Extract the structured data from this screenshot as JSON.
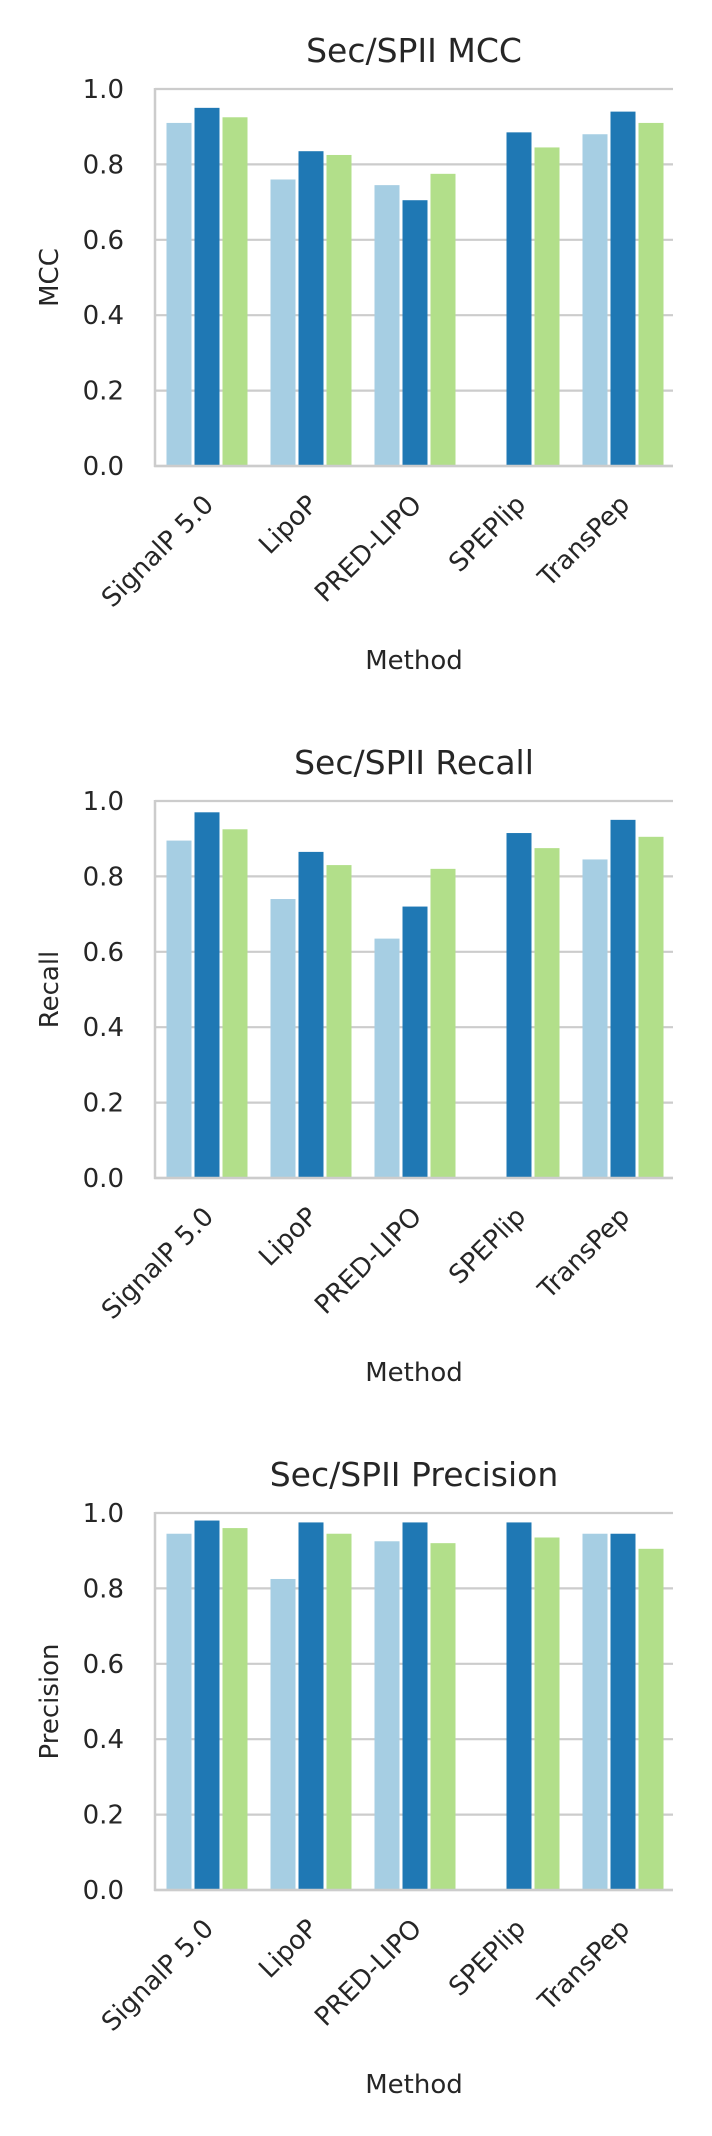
{
  "colors": {
    "series": [
      "#a6cee3",
      "#1f78b4",
      "#b2df8a"
    ],
    "grid": "#cccccc",
    "spine": "#cccccc",
    "text": "#262626"
  },
  "chart_data": [
    {
      "type": "bar",
      "title": "Sec/SPII MCC",
      "xlabel": "Method",
      "ylabel": "MCC",
      "ylim": [
        0,
        1.0
      ],
      "yticks": [
        "0.0",
        "0.2",
        "0.4",
        "0.6",
        "0.8",
        "1.0"
      ],
      "grid": "y",
      "categories": [
        "SignalP 5.0",
        "LipoP",
        "PRED-LIPO",
        "SPEPlip",
        "TransPep"
      ],
      "series": [
        {
          "values": [
            0.91,
            0.76,
            0.745,
            null,
            0.88
          ]
        },
        {
          "values": [
            0.95,
            0.835,
            0.705,
            0.885,
            0.94
          ]
        },
        {
          "values": [
            0.925,
            0.825,
            0.775,
            0.845,
            0.91
          ]
        }
      ]
    },
    {
      "type": "bar",
      "title": "Sec/SPII Recall",
      "xlabel": "Method",
      "ylabel": "Recall",
      "ylim": [
        0,
        1.0
      ],
      "yticks": [
        "0.0",
        "0.2",
        "0.4",
        "0.6",
        "0.8",
        "1.0"
      ],
      "grid": "y",
      "categories": [
        "SignalP 5.0",
        "LipoP",
        "PRED-LIPO",
        "SPEPlip",
        "TransPep"
      ],
      "series": [
        {
          "values": [
            0.895,
            0.74,
            0.635,
            null,
            0.845
          ]
        },
        {
          "values": [
            0.97,
            0.865,
            0.72,
            0.915,
            0.95
          ]
        },
        {
          "values": [
            0.925,
            0.83,
            0.82,
            0.875,
            0.905
          ]
        }
      ]
    },
    {
      "type": "bar",
      "title": "Sec/SPII Precision",
      "xlabel": "Method",
      "ylabel": "Precision",
      "ylim": [
        0,
        1.0
      ],
      "yticks": [
        "0.0",
        "0.2",
        "0.4",
        "0.6",
        "0.8",
        "1.0"
      ],
      "grid": "y",
      "categories": [
        "SignalP 5.0",
        "LipoP",
        "PRED-LIPO",
        "SPEPlip",
        "TransPep"
      ],
      "series": [
        {
          "values": [
            0.945,
            0.825,
            0.925,
            null,
            0.945
          ]
        },
        {
          "values": [
            0.98,
            0.975,
            0.975,
            0.975,
            0.945
          ]
        },
        {
          "values": [
            0.96,
            0.945,
            0.92,
            0.935,
            0.905
          ]
        }
      ]
    }
  ]
}
